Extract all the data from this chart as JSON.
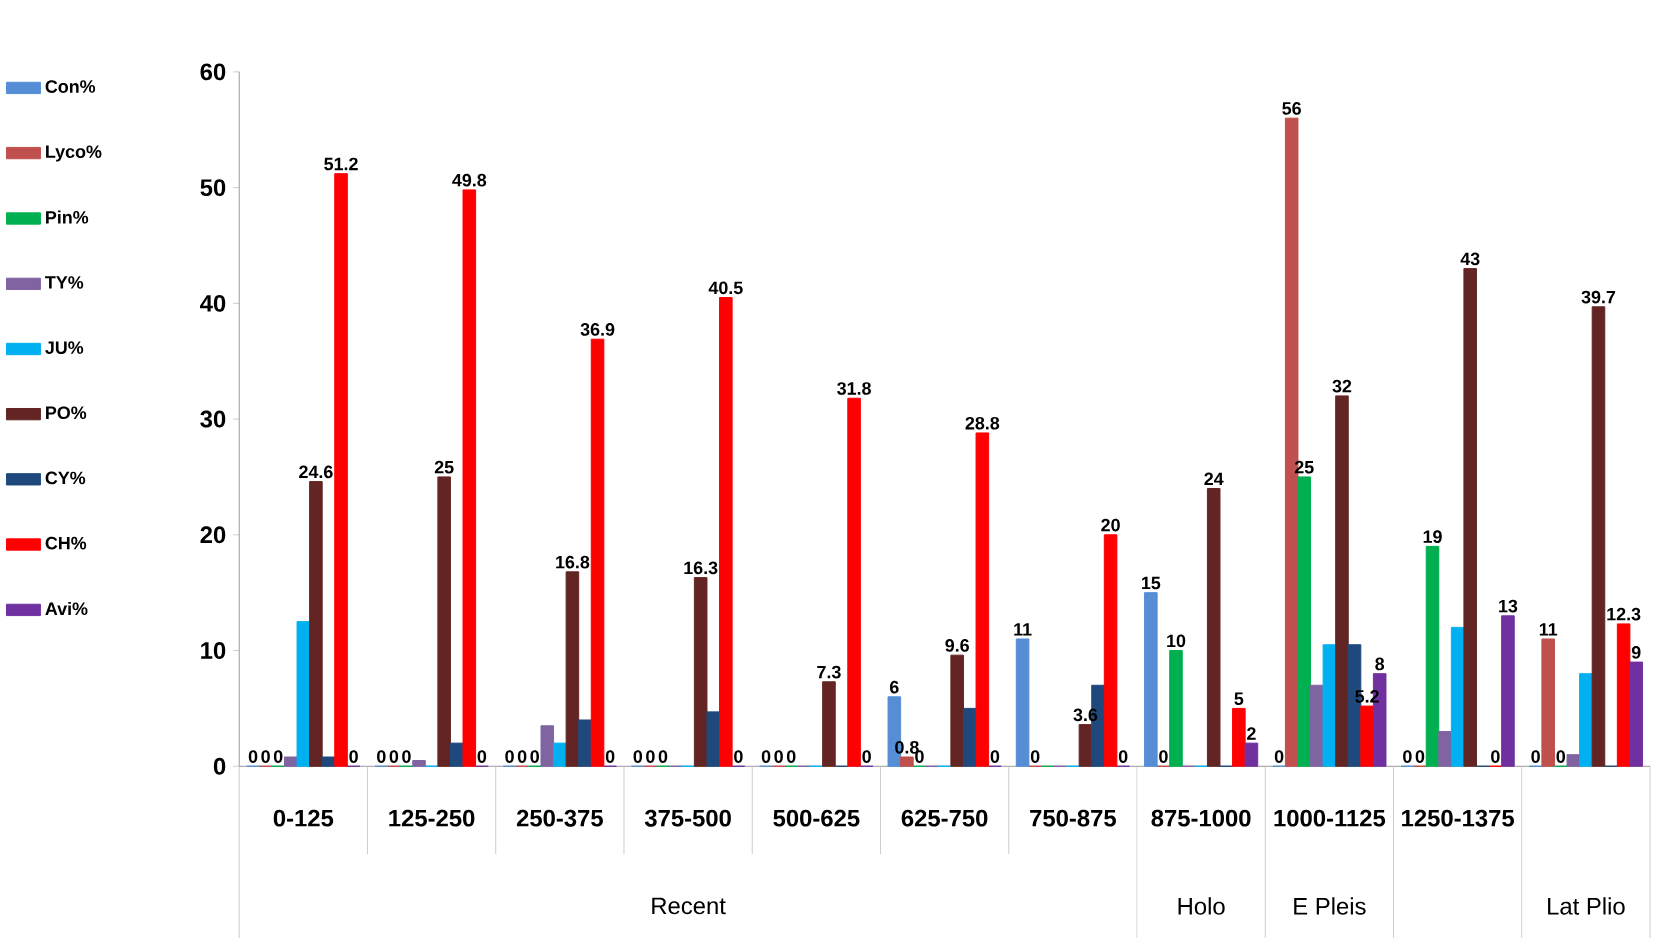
{
  "chart_data": {
    "type": "bar",
    "categories": [
      "0-125",
      "125-250",
      "250-375",
      "375-500",
      "500-625",
      "625-750",
      "750-875",
      "875-1000",
      "1000-1125",
      "1250-1375",
      null
    ],
    "series": [
      {
        "name": "Con%",
        "color": "#558ed5",
        "values": [
          0,
          0,
          0,
          0,
          0,
          6,
          11,
          15,
          0,
          0,
          0
        ],
        "value_labels": [
          "0",
          "0",
          "0",
          "0",
          "0",
          "6",
          "11",
          "15",
          "0",
          "0",
          "0"
        ]
      },
      {
        "name": "Lyco%",
        "color": "#c0504d",
        "values": [
          0,
          0,
          0,
          0,
          0,
          0.8,
          0,
          0,
          56,
          0,
          11
        ],
        "value_labels": [
          "0",
          "0",
          "0",
          "0",
          "0",
          "0.8",
          "0",
          "0",
          "56",
          "0",
          "11"
        ]
      },
      {
        "name": "Pin%",
        "color": "#00b050",
        "values": [
          0,
          0,
          0,
          0,
          0,
          0,
          0,
          10,
          25,
          19,
          0
        ],
        "value_labels": [
          "0",
          "0",
          "0",
          "0",
          "0",
          "0",
          null,
          "10",
          "25",
          "19",
          "0"
        ]
      },
      {
        "name": "TY%",
        "color": "#8064a2",
        "values": [
          0.8,
          0.5,
          3.5,
          0,
          0,
          0,
          0,
          0,
          7,
          3,
          1
        ],
        "value_labels": [
          null,
          null,
          null,
          null,
          null,
          null,
          null,
          null,
          null,
          null,
          null
        ]
      },
      {
        "name": "JU%",
        "color": "#00b0f0",
        "values": [
          12.5,
          0,
          2,
          0,
          0,
          0,
          0,
          0,
          10.5,
          12,
          8
        ],
        "value_labels": [
          null,
          null,
          null,
          null,
          null,
          null,
          null,
          null,
          null,
          null,
          null
        ]
      },
      {
        "name": "PO%",
        "color": "#632523",
        "values": [
          24.6,
          25,
          16.8,
          16.3,
          7.3,
          9.6,
          3.6,
          24,
          32,
          43,
          39.7
        ],
        "value_labels": [
          "24.6",
          "25",
          "16.8",
          "16.3",
          "7.3",
          "9.6",
          "3.6",
          "24",
          "32",
          "43",
          "39.7"
        ]
      },
      {
        "name": "CY%",
        "color": "#1f497d",
        "values": [
          0.8,
          2,
          4,
          4.7,
          0,
          5,
          7,
          0,
          10.5,
          0,
          0
        ],
        "value_labels": [
          null,
          null,
          null,
          null,
          null,
          null,
          null,
          null,
          null,
          null,
          null
        ]
      },
      {
        "name": "CH%",
        "color": "#ff0000",
        "values": [
          51.2,
          49.8,
          36.9,
          40.5,
          31.8,
          28.8,
          20,
          5,
          5.2,
          0,
          12.3
        ],
        "value_labels": [
          "51.2",
          "49.8",
          "36.9",
          "40.5",
          "31.8",
          "28.8",
          "20",
          "5",
          "5.2",
          "0",
          "12.3"
        ]
      },
      {
        "name": "Avi%",
        "color": "#7030a0",
        "values": [
          0,
          0,
          0,
          0,
          0,
          0,
          0,
          2,
          8,
          13,
          9
        ],
        "value_labels": [
          "0",
          "0",
          "0",
          "0",
          "0",
          "0",
          "0",
          "2",
          "8",
          "13",
          "9"
        ]
      }
    ],
    "ylim": [
      0,
      60
    ],
    "yticks": [
      0,
      10,
      20,
      30,
      40,
      50,
      60
    ],
    "legend": "left",
    "annotations": [
      "Recent",
      "Holo",
      "E Pleis",
      "Lat Plio"
    ]
  }
}
